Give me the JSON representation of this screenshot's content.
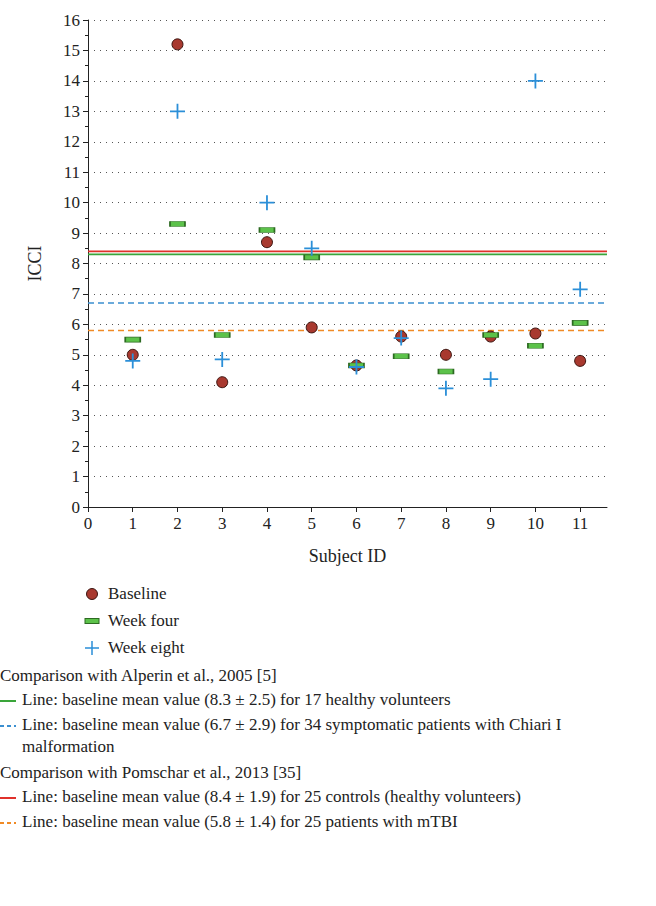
{
  "chart_data": {
    "type": "scatter",
    "x_label": "Subject ID",
    "y_label": "ICCI",
    "x": [
      1,
      2,
      3,
      4,
      5,
      6,
      7,
      8,
      9,
      10,
      11
    ],
    "xlim": [
      0,
      11.6
    ],
    "xticks": [
      0,
      1,
      2,
      3,
      4,
      5,
      6,
      7,
      8,
      9,
      10,
      11
    ],
    "ylim": [
      0,
      16
    ],
    "yticks": [
      0,
      1,
      2,
      3,
      4,
      5,
      6,
      7,
      8,
      9,
      10,
      11,
      12,
      13,
      14,
      15,
      16
    ],
    "grid": true,
    "series": [
      {
        "name": "Baseline",
        "color": "#a8392f",
        "marker": "circle",
        "values": [
          5.0,
          15.2,
          4.1,
          8.7,
          5.9,
          4.65,
          5.6,
          5.0,
          5.6,
          5.7,
          4.8
        ]
      },
      {
        "name": "Week four",
        "color": "#5cc24a",
        "marker": "rect",
        "values": [
          5.5,
          9.3,
          5.65,
          9.1,
          8.2,
          4.65,
          4.95,
          4.45,
          5.65,
          5.3,
          6.05
        ]
      },
      {
        "name": "Week eight",
        "color": "#2b8fd8",
        "marker": "cross",
        "values": [
          4.8,
          13.0,
          4.85,
          10.0,
          8.5,
          4.6,
          5.55,
          3.9,
          4.2,
          14.0,
          7.15
        ]
      }
    ],
    "reference_groups": [
      {
        "title": "Comparison with Alperin et al., 2005 [5]",
        "lines": [
          {
            "value": 8.3,
            "label": "Line: baseline mean value (8.3 ± 2.5) for 17 healthy volunteers",
            "color": "#3aa53a",
            "line_style": "solid"
          },
          {
            "value": 6.7,
            "label": "Line: baseline mean value (6.7 ± 2.9) for 34 symptomatic patients with Chiari I malformation",
            "color": "#3b8fd0",
            "line_style": "dashed"
          }
        ]
      },
      {
        "title": "Comparison with Pomschar et al., 2013 [35]",
        "lines": [
          {
            "value": 8.4,
            "label": "Line: baseline mean value (8.4 ± 1.9) for 25 controls (healthy volunteers)",
            "color": "#e0312b",
            "line_style": "solid"
          },
          {
            "value": 5.8,
            "label": "Line: baseline mean value (5.8 ± 1.4) for 25 patients with mTBI",
            "color": "#f08a25",
            "line_style": "dashed"
          }
        ]
      }
    ]
  }
}
